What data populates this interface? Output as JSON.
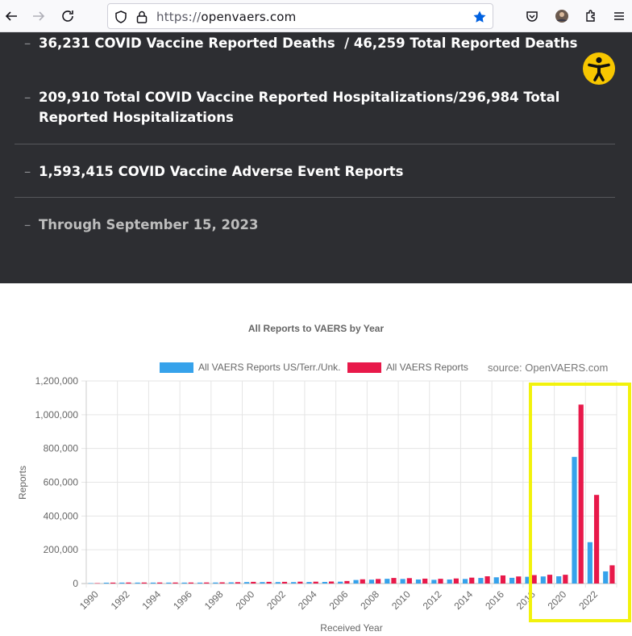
{
  "browser": {
    "url_protocol": "https://",
    "url_host": "openvaers.com",
    "icons": [
      "back-icon",
      "forward-icon",
      "reload-icon",
      "shield-icon",
      "lock-icon",
      "bookmark-star-icon",
      "pocket-icon",
      "profile-avatar",
      "extensions-icon",
      "menu-icon"
    ]
  },
  "stats": {
    "deaths": "36,231 COVID Vaccine Reported Deaths  / 46,259 Total Reported Deaths",
    "hospitalizations": "209,910 Total COVID Vaccine Reported Hospitalizations/296,984 Total Reported Hospitalizations",
    "adverse_events": "1,593,415 COVID Vaccine Adverse Event Reports",
    "through": "Through September 15, 2023",
    "dash": "–"
  },
  "colors": {
    "panel_bg": "#2d2e32",
    "series_us": "#36a2eb",
    "series_all": "#e8194a",
    "highlight": "#f2f20c",
    "a11y_badge": "#f7c600"
  },
  "source_label": "source: OpenVAERS.com",
  "chart_data": {
    "type": "bar",
    "title": "All Reports to VAERS by Year",
    "xlabel": "Received Year",
    "ylabel": "Reports",
    "ylim": [
      0,
      1200000
    ],
    "y_ticks": [
      "0",
      "200,000",
      "400,000",
      "600,000",
      "800,000",
      "1,000,000",
      "1,200,000"
    ],
    "x_tick_labels": [
      "1990",
      "1992",
      "1994",
      "1996",
      "1998",
      "2000",
      "2002",
      "2004",
      "2006",
      "2008",
      "2010",
      "2012",
      "2014",
      "2016",
      "2018",
      "2020",
      "2022"
    ],
    "legend_position": "top",
    "grid": true,
    "categories": [
      1990,
      1991,
      1992,
      1993,
      1994,
      1995,
      1996,
      1997,
      1998,
      1999,
      2000,
      2001,
      2002,
      2003,
      2004,
      2005,
      2006,
      2007,
      2008,
      2009,
      2010,
      2011,
      2012,
      2013,
      2014,
      2015,
      2016,
      2017,
      2018,
      2019,
      2020,
      2021,
      2022,
      2023
    ],
    "series": [
      {
        "name": "All VAERS Reports US/Terr./Unk.",
        "values": [
          2100,
          5000,
          5500,
          5500,
          5500,
          5500,
          5500,
          5500,
          6000,
          7000,
          8500,
          8500,
          8500,
          8500,
          9000,
          9500,
          11000,
          21000,
          23000,
          28000,
          27000,
          24000,
          22000,
          24000,
          27000,
          33000,
          37000,
          34000,
          40000,
          42000,
          43000,
          750000,
          245000,
          72000
        ]
      },
      {
        "name": "All VAERS Reports",
        "values": [
          2200,
          5500,
          6000,
          6000,
          6000,
          6000,
          6000,
          6200,
          7000,
          8000,
          10000,
          10000,
          10000,
          11000,
          11000,
          12000,
          15000,
          25000,
          27000,
          33000,
          32000,
          29000,
          28000,
          30000,
          35000,
          43000,
          48000,
          42000,
          50000,
          52000,
          52000,
          1060000,
          525000,
          108000
        ]
      }
    ]
  }
}
